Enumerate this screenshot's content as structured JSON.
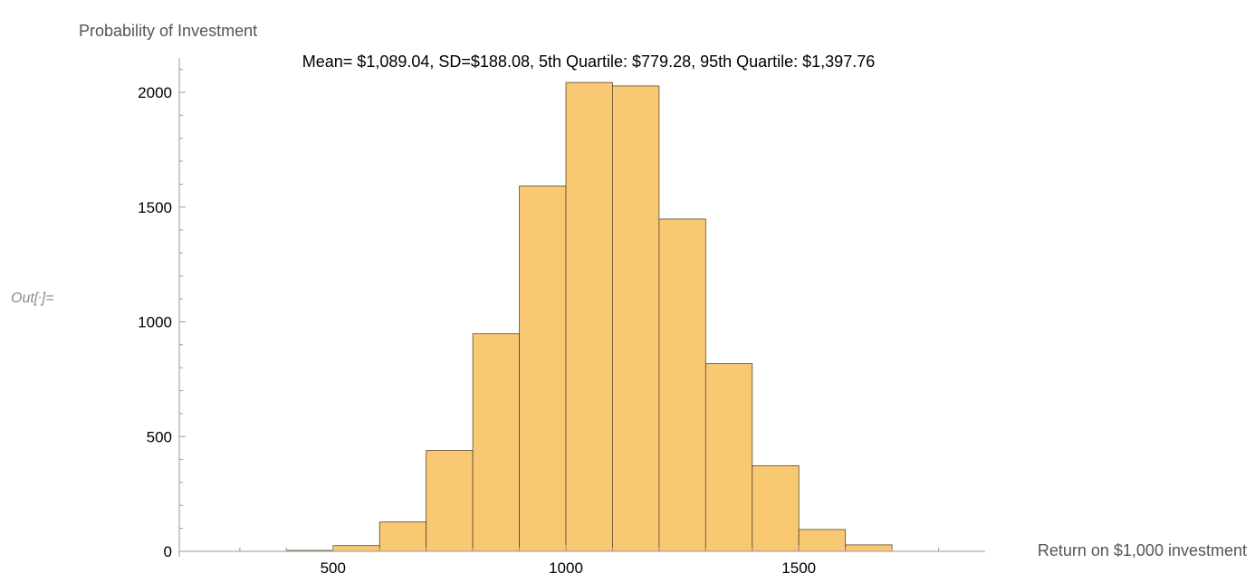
{
  "cell": {
    "out_label": "Out[",
    "out_dot": "•",
    "out_suffix": "]="
  },
  "chart_data": {
    "type": "bar",
    "title": "Mean= $1,089.04, SD=$188.08, 5th Quartile: $779.28, 95th Quartile: $1,397.76",
    "ylabel": "Probability of Investment",
    "xlabel": "Return on $1,000 investment",
    "bin_width": 100,
    "bins": [
      {
        "start": 400,
        "end": 500,
        "count": 4
      },
      {
        "start": 500,
        "end": 600,
        "count": 25
      },
      {
        "start": 600,
        "end": 700,
        "count": 128
      },
      {
        "start": 700,
        "end": 800,
        "count": 440
      },
      {
        "start": 800,
        "end": 900,
        "count": 948
      },
      {
        "start": 900,
        "end": 1000,
        "count": 1592
      },
      {
        "start": 1000,
        "end": 1100,
        "count": 2043
      },
      {
        "start": 1100,
        "end": 1200,
        "count": 2028
      },
      {
        "start": 1200,
        "end": 1300,
        "count": 1448
      },
      {
        "start": 1300,
        "end": 1400,
        "count": 818
      },
      {
        "start": 1400,
        "end": 1500,
        "count": 373
      },
      {
        "start": 1500,
        "end": 1600,
        "count": 95
      },
      {
        "start": 1600,
        "end": 1700,
        "count": 28
      }
    ],
    "xlim": [
      170,
      1900
    ],
    "ylim": [
      0,
      2150
    ],
    "x_ticks": [
      500,
      1000,
      1500
    ],
    "y_ticks": [
      0,
      500,
      1000,
      1500,
      2000
    ],
    "bar_color": "#f9c873",
    "bar_edge_color": "#5a4a30",
    "axis_color": "#9a9a9a"
  }
}
